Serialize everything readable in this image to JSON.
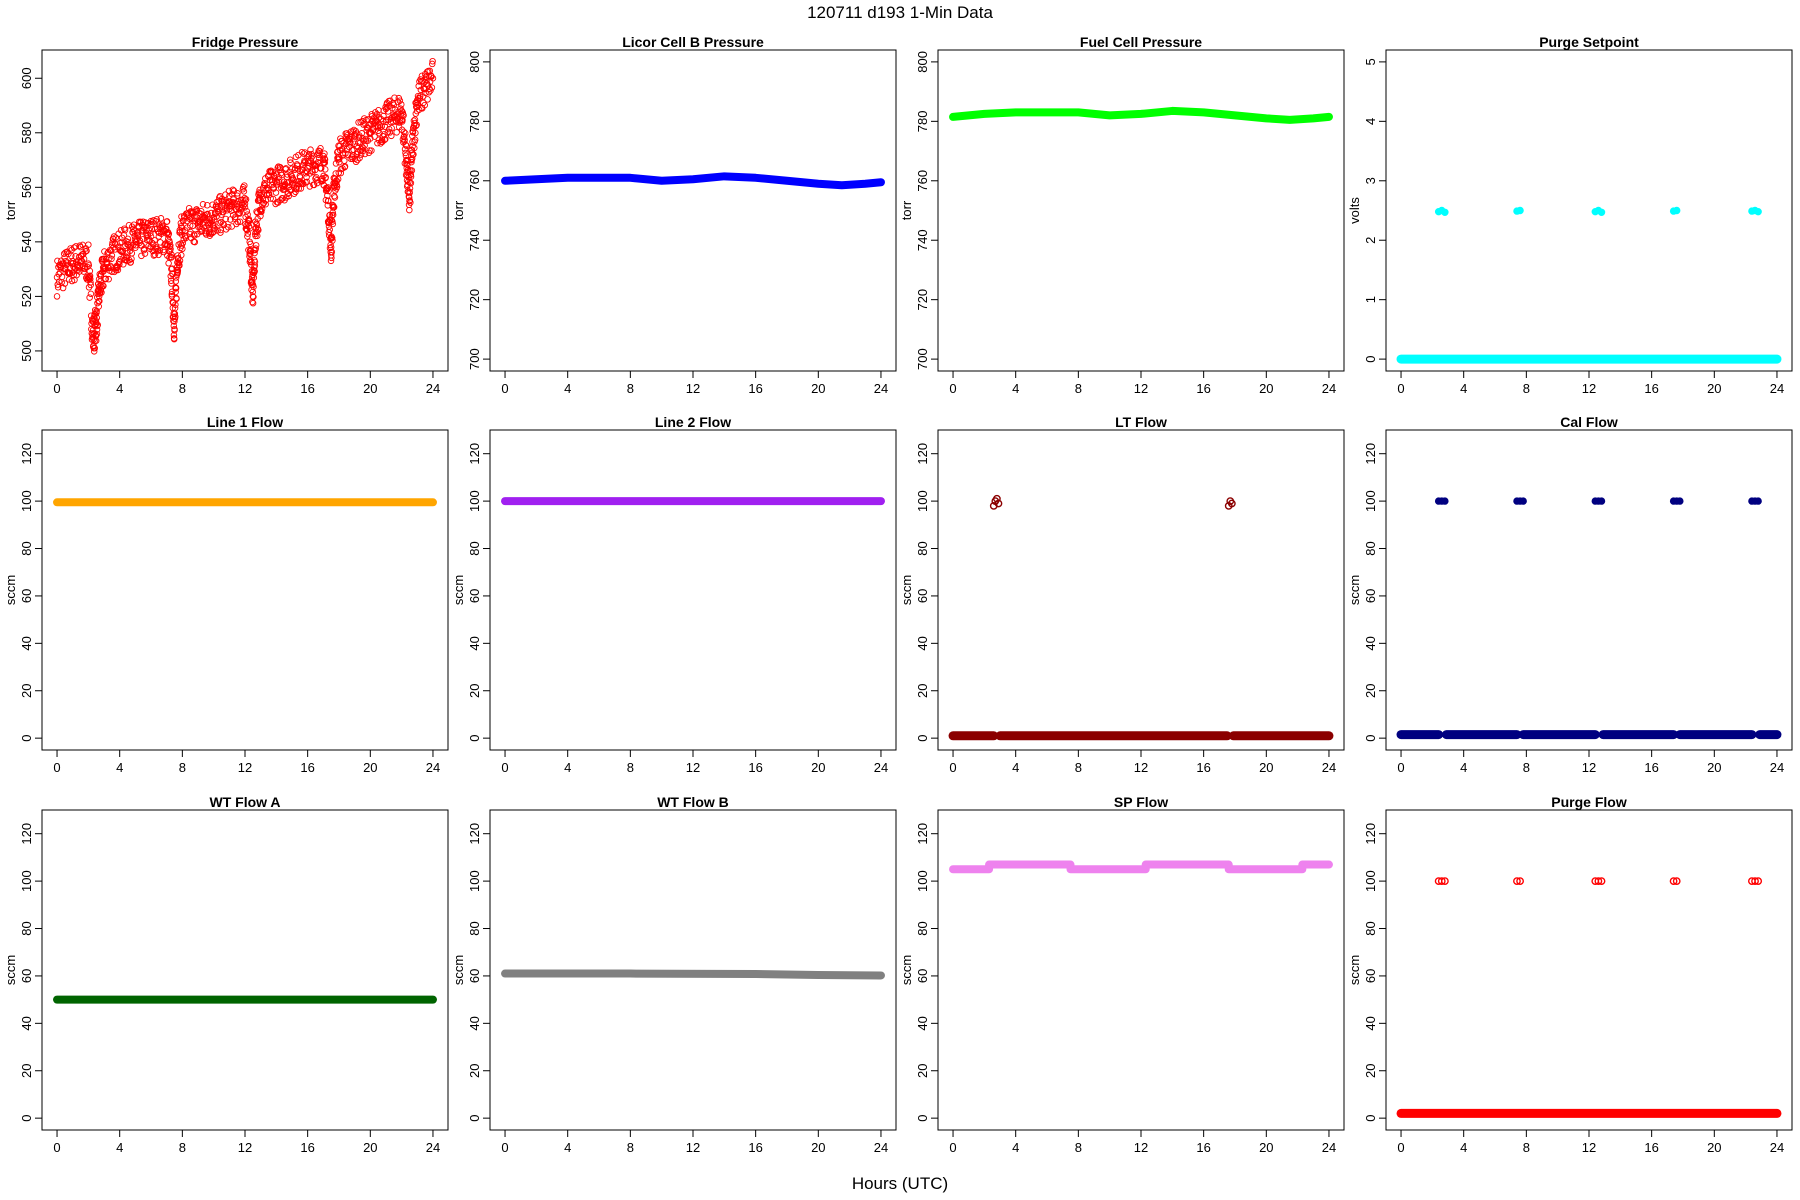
{
  "figure": {
    "title": "120711    d193    1-Min Data",
    "xlabel": "Hours (UTC)"
  },
  "chart_data": [
    {
      "type": "scatter",
      "title": "Fridge Pressure",
      "ylabel": "torr",
      "xlim": [
        0,
        24
      ],
      "ylim": [
        497,
        606
      ],
      "xticks": [
        0,
        4,
        8,
        12,
        16,
        20,
        24
      ],
      "yticks": [
        500,
        520,
        540,
        560,
        580,
        600
      ],
      "series": [
        {
          "color": "#ff0000",
          "marker": "open",
          "x": [
            0.0,
            0.5,
            1.0,
            1.5,
            2.0,
            2.3,
            2.5,
            2.7,
            3.0,
            3.5,
            4.0,
            4.5,
            5.0,
            5.5,
            6.0,
            6.5,
            7.0,
            7.3,
            7.5,
            7.7,
            8.0,
            8.5,
            9.0,
            9.5,
            10.0,
            10.5,
            11.0,
            11.5,
            12.0,
            12.3,
            12.5,
            12.7,
            13.0,
            13.5,
            14.0,
            14.5,
            15.0,
            15.5,
            16.0,
            16.5,
            17.0,
            17.3,
            17.5,
            17.7,
            18.0,
            18.5,
            19.0,
            19.5,
            20.0,
            20.5,
            21.0,
            21.5,
            22.0,
            22.3,
            22.5,
            22.7,
            23.0,
            23.5,
            24.0
          ],
          "y": [
            527,
            530,
            532,
            533,
            532,
            505,
            510,
            522,
            530,
            535,
            537,
            539,
            540,
            541,
            542,
            542,
            543,
            530,
            508,
            535,
            544,
            546,
            547,
            548,
            549,
            550,
            552,
            553,
            554,
            540,
            520,
            545,
            557,
            559,
            561,
            562,
            564,
            566,
            567,
            568,
            569,
            555,
            538,
            560,
            571,
            574,
            576,
            578,
            580,
            582,
            584,
            586,
            588,
            570,
            555,
            575,
            592,
            596,
            600
          ]
        }
      ]
    },
    {
      "type": "scatter",
      "title": "Licor Cell B Pressure",
      "ylabel": "torr",
      "xlim": [
        0,
        24
      ],
      "ylim": [
        700,
        800
      ],
      "xticks": [
        0,
        4,
        8,
        12,
        16,
        20,
        24
      ],
      "yticks": [
        700,
        720,
        740,
        760,
        780,
        800
      ],
      "series": [
        {
          "color": "#0000ff",
          "marker": "filled",
          "x": [
            0,
            2,
            4,
            6,
            8,
            10,
            12,
            14,
            16,
            18,
            20,
            21.5,
            23,
            24
          ],
          "y": [
            760,
            760.5,
            761,
            761,
            761,
            760,
            760.5,
            761.5,
            761,
            760,
            759,
            758.5,
            759,
            759.5
          ]
        }
      ]
    },
    {
      "type": "scatter",
      "title": "Fuel Cell Pressure",
      "ylabel": "torr",
      "xlim": [
        0,
        24
      ],
      "ylim": [
        700,
        800
      ],
      "xticks": [
        0,
        4,
        8,
        12,
        16,
        20,
        24
      ],
      "yticks": [
        700,
        720,
        740,
        760,
        780,
        800
      ],
      "series": [
        {
          "color": "#00ff00",
          "marker": "filled",
          "x": [
            0,
            2,
            4,
            6,
            8,
            10,
            12,
            14,
            16,
            18,
            20,
            21.5,
            23,
            24
          ],
          "y": [
            781.5,
            782.5,
            783,
            783,
            783,
            782,
            782.5,
            783.5,
            783,
            782,
            781,
            780.5,
            781,
            781.5
          ]
        }
      ]
    },
    {
      "type": "scatter",
      "title": "Purge Setpoint",
      "ylabel": "volts",
      "xlim": [
        0,
        24
      ],
      "ylim": [
        0,
        5
      ],
      "xticks": [
        0,
        4,
        8,
        12,
        16,
        20,
        24
      ],
      "yticks": [
        0,
        1,
        2,
        3,
        4,
        5
      ],
      "baseline": {
        "value": 0,
        "color": "#00ffff"
      },
      "series": [
        {
          "color": "#00ffff",
          "marker": "filled",
          "x": [
            2.4,
            2.6,
            2.8,
            7.4,
            7.6,
            12.4,
            12.6,
            12.8,
            17.4,
            17.6,
            22.4,
            22.6,
            22.8
          ],
          "y": [
            2.48,
            2.5,
            2.47,
            2.49,
            2.5,
            2.48,
            2.5,
            2.47,
            2.49,
            2.5,
            2.49,
            2.5,
            2.48
          ]
        }
      ]
    },
    {
      "type": "scatter",
      "title": "Line 1 Flow",
      "ylabel": "sccm",
      "xlim": [
        0,
        24
      ],
      "ylim": [
        0,
        125
      ],
      "xticks": [
        0,
        4,
        8,
        12,
        16,
        20,
        24
      ],
      "yticks": [
        0,
        20,
        40,
        60,
        80,
        100,
        120
      ],
      "series": [
        {
          "color": "#ffa500",
          "marker": "filled",
          "x": [
            0,
            24
          ],
          "y": [
            99.5,
            99.5
          ]
        }
      ]
    },
    {
      "type": "scatter",
      "title": "Line 2 Flow",
      "ylabel": "sccm",
      "xlim": [
        0,
        24
      ],
      "ylim": [
        0,
        125
      ],
      "xticks": [
        0,
        4,
        8,
        12,
        16,
        20,
        24
      ],
      "yticks": [
        0,
        20,
        40,
        60,
        80,
        100,
        120
      ],
      "series": [
        {
          "color": "#a020f0",
          "marker": "filled",
          "x": [
            0,
            24
          ],
          "y": [
            100,
            100
          ]
        }
      ]
    },
    {
      "type": "scatter",
      "title": "LT Flow",
      "ylabel": "sccm",
      "xlim": [
        0,
        24
      ],
      "ylim": [
        0,
        125
      ],
      "xticks": [
        0,
        4,
        8,
        12,
        16,
        20,
        24
      ],
      "yticks": [
        0,
        20,
        40,
        60,
        80,
        100,
        120
      ],
      "baseline": {
        "value": 1,
        "color": "#8b0000",
        "gaps": [
          [
            2.6,
            3.0
          ],
          [
            17.5,
            17.9
          ]
        ]
      },
      "series": [
        {
          "color": "#8b0000",
          "marker": "open",
          "x": [
            2.6,
            2.7,
            2.8,
            2.9,
            17.6,
            17.7,
            17.8
          ],
          "y": [
            98,
            100,
            101,
            99,
            98,
            100,
            99
          ]
        }
      ]
    },
    {
      "type": "scatter",
      "title": "Cal Flow",
      "ylabel": "sccm",
      "xlim": [
        0,
        24
      ],
      "ylim": [
        0,
        125
      ],
      "xticks": [
        0,
        4,
        8,
        12,
        16,
        20,
        24
      ],
      "yticks": [
        0,
        20,
        40,
        60,
        80,
        100,
        120
      ],
      "baseline": {
        "value": 1.5,
        "color": "#000080",
        "gaps": [
          [
            2.4,
            2.9
          ],
          [
            7.4,
            7.8
          ],
          [
            12.4,
            12.9
          ],
          [
            17.4,
            17.8
          ],
          [
            22.4,
            22.9
          ]
        ]
      },
      "series": [
        {
          "color": "#000080",
          "marker": "filled",
          "x": [
            2.4,
            2.6,
            2.8,
            7.4,
            7.6,
            7.8,
            12.4,
            12.6,
            12.8,
            17.4,
            17.6,
            17.8,
            22.4,
            22.6,
            22.8
          ],
          "y": [
            100,
            100,
            100,
            100,
            100,
            100,
            100,
            100,
            100,
            100,
            100,
            100,
            100,
            100,
            100
          ]
        }
      ]
    },
    {
      "type": "scatter",
      "title": "WT Flow A",
      "ylabel": "sccm",
      "xlim": [
        0,
        24
      ],
      "ylim": [
        0,
        125
      ],
      "xticks": [
        0,
        4,
        8,
        12,
        16,
        20,
        24
      ],
      "yticks": [
        0,
        20,
        40,
        60,
        80,
        100,
        120
      ],
      "series": [
        {
          "color": "#006400",
          "marker": "filled",
          "x": [
            0,
            24
          ],
          "y": [
            50,
            50
          ]
        }
      ]
    },
    {
      "type": "scatter",
      "title": "WT Flow B",
      "ylabel": "sccm",
      "xlim": [
        0,
        24
      ],
      "ylim": [
        0,
        125
      ],
      "xticks": [
        0,
        4,
        8,
        12,
        16,
        20,
        24
      ],
      "yticks": [
        0,
        20,
        40,
        60,
        80,
        100,
        120
      ],
      "series": [
        {
          "color": "#808080",
          "marker": "filled",
          "x": [
            0,
            8,
            16,
            20,
            24
          ],
          "y": [
            61,
            61,
            60.8,
            60.4,
            60.2
          ]
        }
      ]
    },
    {
      "type": "scatter",
      "title": "SP Flow",
      "ylabel": "sccm",
      "xlim": [
        0,
        24
      ],
      "ylim": [
        0,
        125
      ],
      "xticks": [
        0,
        4,
        8,
        12,
        16,
        20,
        24
      ],
      "yticks": [
        0,
        20,
        40,
        60,
        80,
        100,
        120
      ],
      "series": [
        {
          "color": "#ee82ee",
          "marker": "filled",
          "steps": true,
          "x": [
            0,
            2.3,
            2.3,
            7.5,
            7.5,
            12.3,
            12.3,
            17.6,
            17.6,
            22.3,
            22.3,
            24
          ],
          "y": [
            105,
            105,
            107,
            107,
            105,
            105,
            107,
            107,
            105,
            105,
            107,
            107
          ]
        }
      ]
    },
    {
      "type": "scatter",
      "title": "Purge Flow",
      "ylabel": "sccm",
      "xlim": [
        0,
        24
      ],
      "ylim": [
        0,
        125
      ],
      "xticks": [
        0,
        4,
        8,
        12,
        16,
        20,
        24
      ],
      "yticks": [
        0,
        20,
        40,
        60,
        80,
        100,
        120
      ],
      "baseline": {
        "value": 2,
        "color": "#ff0000"
      },
      "series": [
        {
          "color": "#ff0000",
          "marker": "open",
          "x": [
            2.4,
            2.6,
            2.8,
            7.4,
            7.6,
            12.4,
            12.6,
            12.8,
            17.4,
            17.6,
            22.4,
            22.6,
            22.8
          ],
          "y": [
            100,
            100,
            100,
            100,
            100,
            100,
            100,
            100,
            100,
            100,
            100,
            100,
            100
          ]
        }
      ]
    }
  ]
}
